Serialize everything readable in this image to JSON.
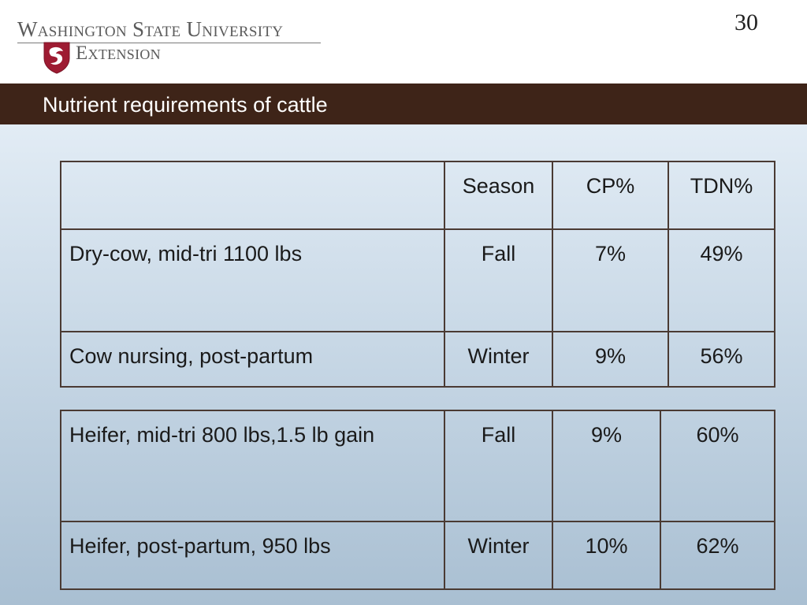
{
  "logo": {
    "line1": "Washington State University",
    "line2": "Extension"
  },
  "page_number": "30",
  "title": "Nutrient requirements of cattle",
  "table1": {
    "header": [
      "",
      "Season",
      "CP%",
      "TDN%"
    ],
    "rows": [
      [
        "Dry-cow, mid-tri 1100 lbs",
        "Fall",
        "7%",
        "49%"
      ],
      [
        "Cow nursing, post-partum",
        "Winter",
        "9%",
        "56%"
      ]
    ]
  },
  "table2": {
    "rows": [
      [
        "Heifer, mid-tri 800 lbs,1.5 lb gain",
        "Fall",
        "9%",
        "60%"
      ],
      [
        "Heifer, post-partum, 950 lbs",
        "Winter",
        "10%",
        "62%"
      ]
    ]
  },
  "colors": {
    "title_bar": "#3e2418",
    "crimson": "#9e1b32",
    "table_border": "#4a3a33"
  }
}
